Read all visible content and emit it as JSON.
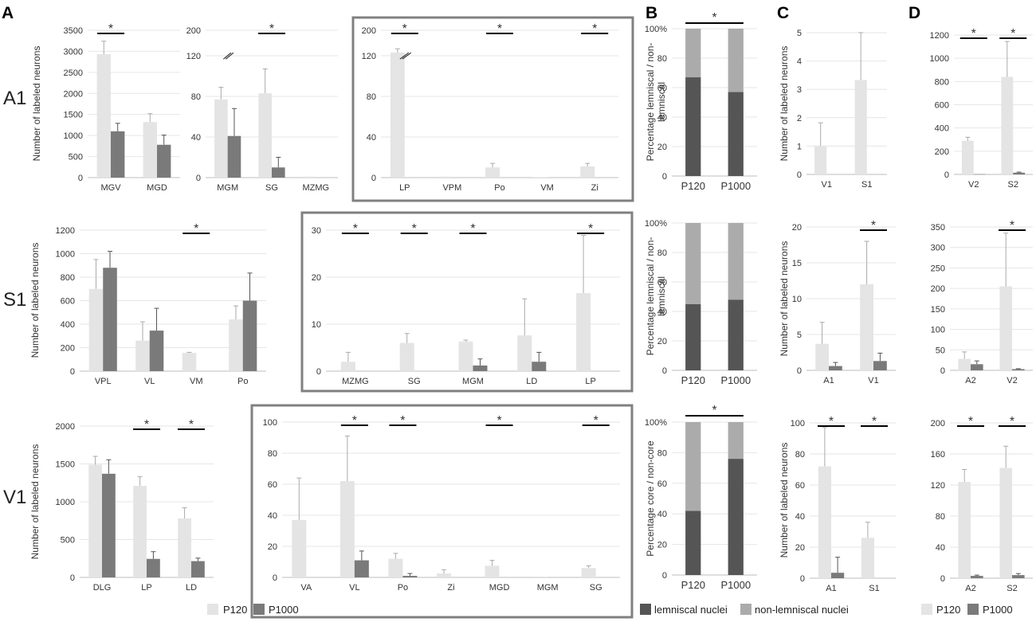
{
  "figure": {
    "panel_letters": [
      "A",
      "B",
      "C",
      "D"
    ],
    "row_labels": [
      "A1",
      "S1",
      "V1"
    ],
    "legend_left": {
      "p120": "P120",
      "p1000": "P1000"
    },
    "legend_b": {
      "lemniscal": "lemniscal nuclei",
      "nonlemniscal": "non-lemniscal nuclei"
    },
    "legend_right": {
      "p120": "P120",
      "p1000": "P1000"
    },
    "colors": {
      "p120": "#e4e4e4",
      "p1000": "#7a7a7a",
      "lemniscal": "#555555",
      "nonlemniscal": "#ababab",
      "frame": "#808080"
    }
  },
  "chart_data": [
    {
      "id": "A_A1_1",
      "type": "bar",
      "ylabel": "Number of labeled neurons",
      "ylim": [
        0,
        3500
      ],
      "yticks": [
        0,
        500,
        1000,
        1500,
        2000,
        2500,
        3000,
        3500
      ],
      "categories": [
        "MGV",
        "MGD"
      ],
      "series": [
        {
          "name": "P120",
          "values": [
            2930,
            1320
          ],
          "errors": [
            310,
            200
          ]
        },
        {
          "name": "P1000",
          "values": [
            1100,
            780
          ],
          "errors": [
            190,
            230
          ]
        }
      ],
      "significance": [
        0
      ]
    },
    {
      "id": "A_A1_2",
      "type": "bar",
      "ylabel": "",
      "ylim": [
        0,
        200
      ],
      "yticks": [
        0,
        40,
        80,
        120,
        200
      ],
      "ytick_labels": [
        "0",
        "40",
        "80",
        "120",
        "200"
      ],
      "axis_break": true,
      "categories": [
        "MGM",
        "SG",
        "MZMG"
      ],
      "series": [
        {
          "name": "P120",
          "values": [
            77,
            83,
            1
          ],
          "errors": [
            12,
            24,
            0
          ]
        },
        {
          "name": "P1000",
          "values": [
            41,
            10,
            0
          ],
          "errors": [
            27,
            10,
            0
          ]
        }
      ],
      "significance": [
        1
      ]
    },
    {
      "id": "A_A1_3",
      "type": "bar",
      "ylabel": "",
      "ylim": [
        0,
        200
      ],
      "yticks": [
        0,
        40,
        80,
        120,
        200
      ],
      "ytick_labels": [
        "0",
        "40",
        "80",
        "120",
        "200"
      ],
      "axis_break": true,
      "categories": [
        "LP",
        "VPM",
        "Po",
        "VM",
        "Zi"
      ],
      "series": [
        {
          "name": "P120",
          "values": [
            130,
            1,
            10,
            0.5,
            11
          ],
          "errors": [
            12,
            0,
            4,
            0,
            3
          ]
        },
        {
          "name": "P1000",
          "values": [
            0,
            0,
            0,
            0,
            0
          ],
          "errors": [
            0,
            0,
            0,
            0,
            0
          ]
        }
      ],
      "significance": [
        0,
        2,
        4
      ]
    },
    {
      "id": "A_S1_1",
      "type": "bar",
      "ylabel": "Number of labeled neurons",
      "ylim": [
        0,
        1200
      ],
      "yticks": [
        0,
        200,
        400,
        600,
        800,
        1000,
        1200
      ],
      "categories": [
        "VPL",
        "VL",
        "VM",
        "Po"
      ],
      "series": [
        {
          "name": "P120",
          "values": [
            700,
            260,
            155,
            440
          ],
          "errors": [
            250,
            160,
            5,
            115
          ]
        },
        {
          "name": "P1000",
          "values": [
            880,
            345,
            0,
            600
          ],
          "errors": [
            140,
            190,
            0,
            235
          ]
        }
      ],
      "significance": [
        2
      ]
    },
    {
      "id": "A_S1_2",
      "type": "bar",
      "ylabel": "",
      "ylim": [
        0,
        30
      ],
      "yticks": [
        0,
        10,
        20,
        30
      ],
      "categories": [
        "MZMG",
        "SG",
        "MGM",
        "LD",
        "LP"
      ],
      "series": [
        {
          "name": "P120",
          "values": [
            2,
            6,
            6.3,
            7.6,
            16.6
          ],
          "errors": [
            2,
            2,
            0.3,
            7.8,
            12.3
          ]
        },
        {
          "name": "P1000",
          "values": [
            0,
            0,
            1.2,
            2,
            0
          ],
          "errors": [
            0,
            0,
            1.4,
            2,
            0
          ]
        }
      ],
      "significance": [
        0,
        1,
        2,
        4
      ]
    },
    {
      "id": "A_V1_1",
      "type": "bar",
      "ylabel": "Number of labeled neurons",
      "ylim": [
        0,
        2000
      ],
      "yticks": [
        0,
        500,
        1000,
        1500,
        2000
      ],
      "categories": [
        "DLG",
        "LP",
        "LD"
      ],
      "series": [
        {
          "name": "P120",
          "values": [
            1490,
            1210,
            780
          ],
          "errors": [
            110,
            120,
            140
          ]
        },
        {
          "name": "P1000",
          "values": [
            1370,
            245,
            215
          ],
          "errors": [
            185,
            95,
            40
          ]
        }
      ],
      "significance": [
        1,
        2
      ]
    },
    {
      "id": "A_V1_2",
      "type": "bar",
      "ylabel": "",
      "ylim": [
        0,
        100
      ],
      "yticks": [
        0,
        20,
        40,
        60,
        80,
        100
      ],
      "categories": [
        "VA",
        "VL",
        "Po",
        "Zi",
        "MGD",
        "MGM",
        "SG"
      ],
      "series": [
        {
          "name": "P120",
          "values": [
            37,
            62,
            12,
            2.5,
            7.5,
            0.5,
            6
          ],
          "errors": [
            27,
            29,
            3.5,
            2.5,
            3.5,
            0,
            1.5
          ]
        },
        {
          "name": "P1000",
          "values": [
            0,
            11,
            1,
            0,
            0,
            0,
            0
          ],
          "errors": [
            0,
            6,
            1.5,
            0,
            0,
            0,
            0
          ]
        }
      ],
      "significance": [
        1,
        2,
        4,
        6
      ]
    },
    {
      "id": "B_1",
      "type": "stacked_bar",
      "ylabel": "Percentage lemniscal / non-lemniscal",
      "ylim": [
        0,
        100
      ],
      "yticks": [
        0,
        20,
        40,
        60,
        80,
        100
      ],
      "ytick_labels": [
        "0",
        "20",
        "40",
        "60",
        "80",
        "100%"
      ],
      "categories": [
        "P120",
        "P1000"
      ],
      "series": [
        {
          "name": "lemniscal nuclei",
          "values": [
            67,
            57
          ]
        },
        {
          "name": "non-lemniscal nuclei",
          "values": [
            33,
            43
          ]
        }
      ],
      "significance_pair": true
    },
    {
      "id": "B_2",
      "type": "stacked_bar",
      "ylabel": "Percentage lemniscal / non-lemniscal",
      "ylim": [
        0,
        100
      ],
      "yticks": [
        0,
        20,
        40,
        60,
        80,
        100
      ],
      "ytick_labels": [
        "0",
        "20",
        "40",
        "60",
        "80",
        "100%"
      ],
      "categories": [
        "P120",
        "P1000"
      ],
      "series": [
        {
          "name": "lemniscal nuclei",
          "values": [
            45,
            48
          ]
        },
        {
          "name": "non-lemniscal nuclei",
          "values": [
            55,
            52
          ]
        }
      ],
      "significance_pair": false
    },
    {
      "id": "B_3",
      "type": "stacked_bar",
      "ylabel": "Percentage core / non-core",
      "ylim": [
        0,
        100
      ],
      "yticks": [
        0,
        20,
        40,
        60,
        80,
        100
      ],
      "ytick_labels": [
        "0",
        "20",
        "40",
        "60",
        "80",
        "100%"
      ],
      "categories": [
        "P120",
        "P1000"
      ],
      "series": [
        {
          "name": "lemniscal nuclei",
          "values": [
            42,
            76
          ]
        },
        {
          "name": "non-lemniscal nuclei",
          "values": [
            58,
            24
          ]
        }
      ],
      "significance_pair": true
    },
    {
      "id": "C_1",
      "type": "bar",
      "ylabel": "Number of labeled neurons",
      "ylim": [
        0,
        5
      ],
      "yticks": [
        0,
        1,
        2,
        3,
        4,
        5
      ],
      "categories": [
        "V1",
        "S1"
      ],
      "series": [
        {
          "name": "P120",
          "values": [
            1,
            3.33
          ],
          "errors": [
            0.82,
            1.67
          ]
        },
        {
          "name": "P1000",
          "values": [
            0,
            0
          ],
          "errors": [
            0,
            0
          ]
        }
      ],
      "significance": []
    },
    {
      "id": "C_2",
      "type": "bar",
      "ylabel": "Number of labeled neurons",
      "ylim": [
        0,
        20
      ],
      "yticks": [
        0,
        5,
        10,
        15,
        20
      ],
      "categories": [
        "A1",
        "V1"
      ],
      "series": [
        {
          "name": "P120",
          "values": [
            3.7,
            12
          ],
          "errors": [
            3,
            6
          ]
        },
        {
          "name": "P1000",
          "values": [
            0.6,
            1.3
          ],
          "errors": [
            0.5,
            1.1
          ]
        }
      ],
      "significance": [
        1
      ]
    },
    {
      "id": "C_3",
      "type": "bar",
      "ylabel": "Number of labeled neurons",
      "ylim": [
        0,
        100
      ],
      "yticks": [
        0,
        20,
        40,
        60,
        80,
        100
      ],
      "categories": [
        "A1",
        "S1"
      ],
      "series": [
        {
          "name": "P120",
          "values": [
            72,
            26
          ],
          "errors": [
            25,
            10
          ]
        },
        {
          "name": "P1000",
          "values": [
            3.5,
            0
          ],
          "errors": [
            10,
            0
          ]
        }
      ],
      "significance": [
        0,
        1
      ]
    },
    {
      "id": "D_1",
      "type": "bar",
      "ylabel": "",
      "ylim": [
        0,
        1200
      ],
      "yticks": [
        0,
        200,
        400,
        600,
        800,
        1000,
        1200
      ],
      "categories": [
        "V2",
        "S2"
      ],
      "series": [
        {
          "name": "P120",
          "values": [
            290,
            840
          ],
          "errors": [
            30,
            305
          ]
        },
        {
          "name": "P1000",
          "values": [
            2,
            15
          ],
          "errors": [
            0,
            5
          ]
        }
      ],
      "significance": [
        0,
        1
      ]
    },
    {
      "id": "D_2",
      "type": "bar",
      "ylabel": "",
      "ylim": [
        0,
        350
      ],
      "yticks": [
        0,
        50,
        100,
        150,
        200,
        250,
        300,
        350
      ],
      "categories": [
        "A2",
        "V2"
      ],
      "series": [
        {
          "name": "P120",
          "values": [
            28,
            205
          ],
          "errors": [
            17,
            130
          ]
        },
        {
          "name": "P1000",
          "values": [
            15,
            3
          ],
          "errors": [
            8,
            1
          ]
        }
      ],
      "significance": [
        1
      ]
    },
    {
      "id": "D_3",
      "type": "bar",
      "ylabel": "",
      "ylim": [
        0,
        200
      ],
      "yticks": [
        0,
        40,
        80,
        120,
        160,
        200
      ],
      "categories": [
        "A2",
        "S2"
      ],
      "series": [
        {
          "name": "P120",
          "values": [
            124,
            142
          ],
          "errors": [
            16,
            28
          ]
        },
        {
          "name": "P1000",
          "values": [
            3,
            4
          ],
          "errors": [
            1,
            2
          ]
        }
      ],
      "significance": [
        0,
        1
      ]
    }
  ]
}
